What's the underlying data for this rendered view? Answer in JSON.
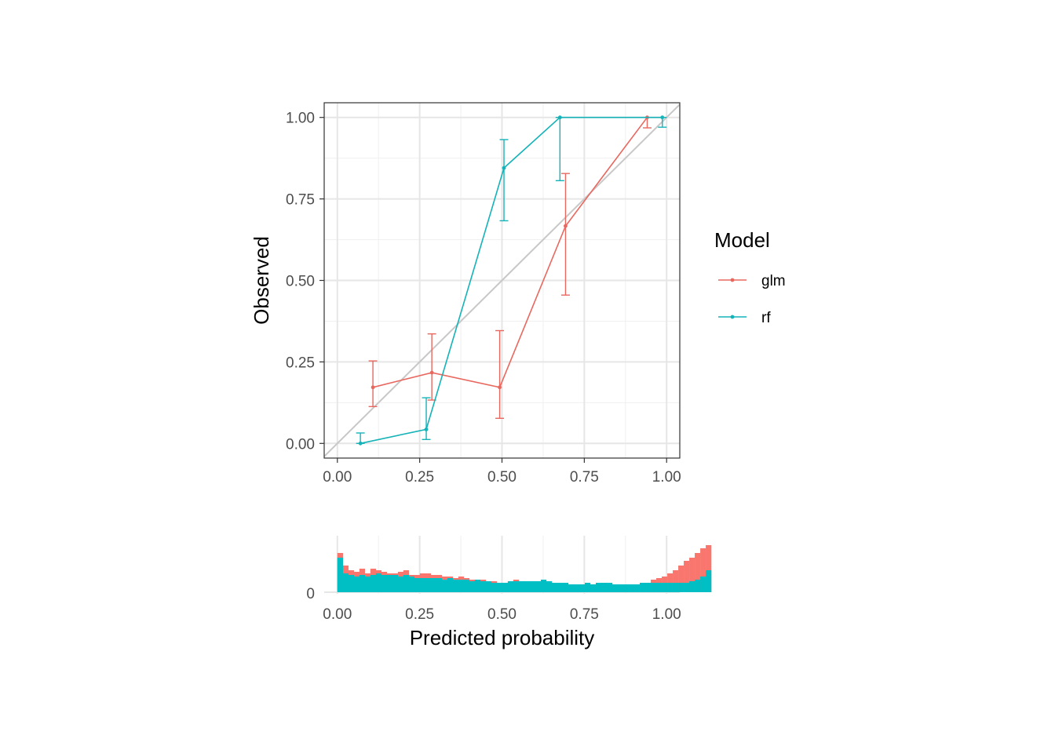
{
  "chart_data": [
    {
      "type": "line",
      "xlabel": "",
      "ylabel": "Observed",
      "xlim": [
        -0.04,
        1.04
      ],
      "ylim": [
        -0.045,
        1.045
      ],
      "x_ticks": [
        "0.00",
        "0.25",
        "0.50",
        "0.75",
        "1.00"
      ],
      "y_ticks": [
        "0.00",
        "0.25",
        "0.50",
        "0.75",
        "1.00"
      ],
      "grid": true,
      "reference_line": {
        "from": [
          0,
          0
        ],
        "to": [
          1,
          1
        ],
        "color": "#c8c8c8"
      },
      "legend": {
        "title": "Model",
        "position": "right"
      },
      "series": [
        {
          "name": "glm",
          "color": "#e8685f",
          "points": [
            {
              "x": 0.108,
              "y": 0.172,
              "lo": 0.113,
              "hi": 0.253
            },
            {
              "x": 0.287,
              "y": 0.217,
              "lo": 0.133,
              "hi": 0.336
            },
            {
              "x": 0.493,
              "y": 0.172,
              "lo": 0.077,
              "hi": 0.346
            },
            {
              "x": 0.693,
              "y": 0.667,
              "lo": 0.455,
              "hi": 0.828
            },
            {
              "x": 0.941,
              "y": 1.0,
              "lo": 0.968,
              "hi": 1.0
            }
          ]
        },
        {
          "name": "rf",
          "color": "#15b3b8",
          "points": [
            {
              "x": 0.07,
              "y": 0.0,
              "lo": 0.0,
              "hi": 0.032
            },
            {
              "x": 0.27,
              "y": 0.043,
              "lo": 0.012,
              "hi": 0.14
            },
            {
              "x": 0.506,
              "y": 0.845,
              "lo": 0.683,
              "hi": 0.932
            },
            {
              "x": 0.676,
              "y": 1.0,
              "lo": 0.806,
              "hi": 1.0
            },
            {
              "x": 0.987,
              "y": 1.0,
              "lo": 0.97,
              "hi": 1.0
            }
          ]
        }
      ]
    },
    {
      "type": "bar",
      "xlabel": "Predicted probability",
      "ylabel": "",
      "xlim": [
        -0.04,
        1.04
      ],
      "x_ticks": [
        "0.00",
        "0.25",
        "0.50",
        "0.75",
        "1.00"
      ],
      "y_ticks": [
        "0"
      ],
      "ymax": 32,
      "bin_width": 0.0167,
      "bin_start": 0.0,
      "series": [
        {
          "name": "glm",
          "color": "#f8766d",
          "values": [
            25,
            17,
            14,
            13,
            15,
            12,
            15,
            14,
            13,
            12,
            12,
            13,
            14,
            11,
            11,
            12,
            12,
            11,
            11,
            10,
            10,
            9,
            10,
            9,
            8,
            8,
            8,
            7,
            7,
            6,
            6,
            7,
            8,
            7,
            6,
            6,
            6,
            7,
            6,
            5,
            5,
            5,
            4,
            5,
            4,
            5,
            4,
            5,
            5,
            4,
            4,
            4,
            5,
            5,
            5,
            6,
            6,
            8,
            9,
            10,
            12,
            14,
            17,
            20,
            22,
            25,
            28,
            30
          ]
        },
        {
          "name": "rf",
          "color": "#00bfc4",
          "values": [
            22,
            12,
            11,
            10,
            11,
            10,
            11,
            12,
            11,
            11,
            11,
            10,
            11,
            10,
            9,
            9,
            9,
            9,
            9,
            8,
            9,
            8,
            8,
            8,
            7,
            8,
            7,
            7,
            6,
            6,
            6,
            7,
            7,
            7,
            7,
            7,
            7,
            8,
            7,
            6,
            6,
            6,
            5,
            5,
            5,
            6,
            5,
            6,
            6,
            6,
            5,
            5,
            5,
            5,
            5,
            6,
            6,
            6,
            6,
            6,
            6,
            6,
            6,
            6,
            7,
            8,
            10,
            14
          ]
        }
      ]
    }
  ]
}
